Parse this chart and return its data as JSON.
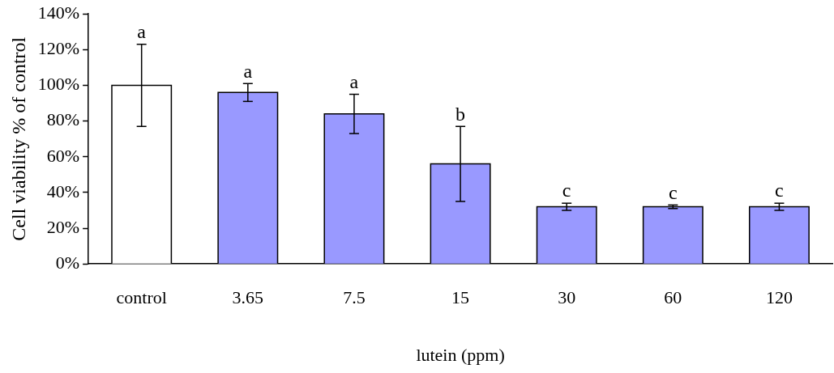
{
  "chart_data": {
    "type": "bar",
    "xlabel": "lutein (ppm)",
    "ylabel": "Cell viability % of control",
    "categories": [
      "control",
      "3.65",
      "7.5",
      "15",
      "30",
      "60",
      "120"
    ],
    "values": [
      100,
      96,
      84,
      56,
      32,
      32,
      32
    ],
    "errors": [
      23,
      5,
      11,
      21,
      2,
      1,
      2
    ],
    "colors": [
      "#ffffff",
      "#9999ff",
      "#9999ff",
      "#9999ff",
      "#9999ff",
      "#9999ff",
      "#9999ff"
    ],
    "ylim": [
      0,
      140
    ],
    "yticks": [
      {
        "value": 0,
        "label": "0%"
      },
      {
        "value": 20,
        "label": "20%"
      },
      {
        "value": 40,
        "label": "40%"
      },
      {
        "value": 60,
        "label": "60%"
      },
      {
        "value": 80,
        "label": "80%"
      },
      {
        "value": 100,
        "label": "100%"
      },
      {
        "value": 120,
        "label": "120%"
      },
      {
        "value": 140,
        "label": "140%"
      }
    ],
    "annotations": [
      {
        "text": "a",
        "x": "control",
        "y": 123
      },
      {
        "text": "a",
        "x": "3.65",
        "y": 101
      },
      {
        "text": "a",
        "x": "7.5",
        "y": 95
      },
      {
        "text": "b",
        "x": "15",
        "y": 77
      },
      {
        "text": "c",
        "x": "30",
        "y": 34
      },
      {
        "text": "c",
        "x": "60",
        "y": 33
      },
      {
        "text": "c",
        "x": "120",
        "y": 34
      }
    ],
    "grid": false,
    "legend": false
  }
}
